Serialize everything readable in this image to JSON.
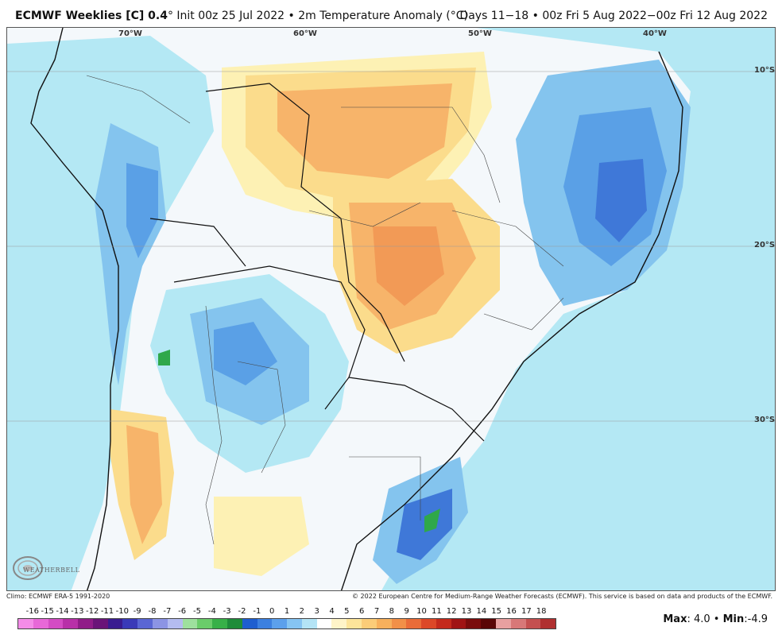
{
  "header": {
    "title_main": "ECMWF Weeklies [C] 0.4",
    "title_degree": "°",
    "title_rest": " Init 00z 25 Jul 2022 • 2m Temperature Anomaly (°C)",
    "period": "Days 11−18 • 00z Fri 5 Aug 2022−00z Fri 12 Aug 2022"
  },
  "map": {
    "longitude_labels": [
      "70°W",
      "60°W",
      "50°W",
      "40°W"
    ],
    "latitude_labels": [
      "10°S",
      "20°S",
      "30°S"
    ],
    "colors": {
      "background": "#f6f9fc",
      "light_blue": "#b4e8f4",
      "mid_blue": "#84c4ee",
      "blue": "#5aa0e6",
      "deep_blue": "#3f78d8",
      "navy": "#1f4fb0",
      "green_core": "#2fa84a",
      "light_yellow": "#fdf1b4",
      "yellow": "#fbdc8c",
      "orange": "#f7b46a",
      "deep_orange": "#f29a56",
      "borders": "#111111"
    }
  },
  "footer": {
    "climo": "Climo: ECMWF ERA-5 1991-2020",
    "copyright": "© 2022 European Centre for Medium-Range Weather Forecasts (ECMWF). This service is based on data and products of the ECMWF."
  },
  "legend": {
    "labels": [
      "-16",
      "-15",
      "-14",
      "-13",
      "-12",
      "-11",
      "-10",
      "-9",
      "-8",
      "-7",
      "-6",
      "-5",
      "-4",
      "-3",
      "-2",
      "-1",
      "0",
      "1",
      "2",
      "3",
      "4",
      "5",
      "6",
      "7",
      "8",
      "9",
      "10",
      "11",
      "12",
      "13",
      "14",
      "15",
      "16",
      "17",
      "18"
    ],
    "colors": [
      "#f48ce8",
      "#e868d8",
      "#d44cc4",
      "#b830a8",
      "#901c88",
      "#6a1478",
      "#3a1c90",
      "#3a3ab8",
      "#5a66d4",
      "#8c94e4",
      "#b4bcf0",
      "#9ee09e",
      "#6acc6a",
      "#38b048",
      "#1f8c3a",
      "#1e5ed0",
      "#3c80e0",
      "#5ca0ec",
      "#86c4f2",
      "#b4e4f6",
      "#ffffff",
      "#fff4c8",
      "#fde49a",
      "#fbcc78",
      "#f7b05c",
      "#f29048",
      "#ea6c38",
      "#dc4828",
      "#c42a1c",
      "#a01414",
      "#7a0c0c",
      "#5a0606",
      "#e8a0a0",
      "#d87878",
      "#c45050",
      "#b03030"
    ]
  },
  "stats": {
    "max_label": "Max",
    "max_value": ": 4.0",
    "separator": " • ",
    "min_label": "Min",
    "min_value": ":-4.9"
  },
  "logo": {
    "text": "WEATHERBELL"
  }
}
